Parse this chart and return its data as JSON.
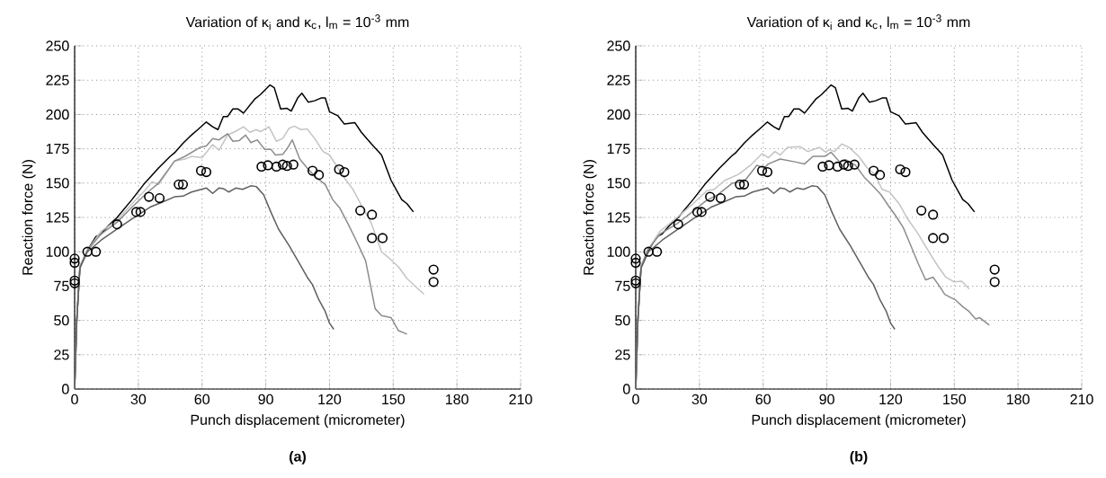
{
  "chart_data": [
    {
      "type": "line",
      "title": "Variation of κ$_{i}$ and κ$_{c}$, l$_{m}$ = 10$^{-3}$ mm",
      "xlabel": "Punch displacement (micrometer)",
      "ylabel": "Reaction force (N)",
      "annotations": [
        "(a)"
      ],
      "xlim": [
        0,
        210
      ],
      "xticks": [
        0,
        30,
        60,
        90,
        120,
        150,
        180,
        210
      ],
      "ylim": [
        0,
        250
      ],
      "yticks": [
        0,
        25,
        50,
        75,
        100,
        125,
        150,
        175,
        200,
        225,
        250
      ],
      "grid": true,
      "series": [
        {
          "type": "line",
          "color": "#000000",
          "marker": "none",
          "x": [
            0,
            1,
            2.5,
            6,
            10,
            12.5,
            15.5,
            20,
            27,
            32.5,
            39.5,
            45,
            47,
            51,
            55,
            58,
            62,
            65,
            67.5,
            70,
            72,
            74.5,
            77,
            79.5,
            85,
            87.5,
            92,
            94,
            97,
            100,
            102,
            105,
            107,
            110,
            113,
            116,
            118,
            120,
            124,
            127,
            132,
            135,
            139.5,
            144.5,
            149,
            154,
            156.5,
            159.5
          ],
          "values": [
            0,
            50,
            89,
            101,
            111,
            113,
            118.5,
            125,
            138,
            149,
            161,
            169.5,
            172,
            179,
            185,
            189,
            194.5,
            191,
            189,
            198.5,
            198.5,
            204,
            204,
            201,
            211.5,
            214.5,
            221.5,
            219.5,
            204,
            204.5,
            202.5,
            212,
            215.5,
            209,
            210,
            212,
            212,
            202,
            199,
            193,
            194,
            187,
            179,
            170.5,
            152,
            138,
            135,
            129
          ]
        },
        {
          "type": "line",
          "color": "#c4c4c4",
          "marker": "none",
          "x": [
            0,
            1,
            2.5,
            6,
            12.5,
            20,
            27,
            33,
            36.5,
            39.5,
            47,
            52,
            55,
            60,
            65,
            68,
            72,
            75.5,
            79.5,
            82.5,
            85.5,
            87.5,
            91.5,
            95,
            98,
            101,
            103.5,
            106.5,
            109.5,
            113,
            117,
            120,
            124,
            127,
            131,
            135.5,
            139.5,
            142.5,
            144.5,
            148,
            152.5,
            156.5,
            161,
            164.5
          ],
          "values": [
            0,
            50,
            89,
            101,
            115,
            123,
            135,
            144.5,
            151,
            149,
            166,
            167.5,
            169.5,
            168.5,
            178,
            174,
            185,
            187.5,
            191,
            187,
            189,
            187.5,
            191,
            180.5,
            182.5,
            190,
            191.5,
            189,
            189.5,
            182.5,
            173,
            170.5,
            161,
            154,
            145.5,
            132.5,
            121.5,
            108.5,
            100,
            95.5,
            89,
            80.5,
            74,
            69
          ]
        },
        {
          "type": "line",
          "color": "#8c8c8c",
          "marker": "none",
          "x": [
            0,
            1,
            2.5,
            6,
            12.5,
            20,
            27,
            34.5,
            39.5,
            47,
            52,
            59,
            62,
            65,
            68,
            72,
            74.5,
            77.5,
            80.5,
            83,
            86,
            89.5,
            92.5,
            94.5,
            98,
            100,
            102.5,
            106,
            109.5,
            113.5,
            118,
            121.5,
            125,
            129,
            132.5,
            137,
            141.5,
            144.5,
            149,
            152.5,
            156.5
          ],
          "values": [
            0,
            50,
            89,
            101,
            113,
            121.5,
            132.5,
            143.5,
            150,
            166,
            169.5,
            176,
            177,
            182.5,
            181.5,
            186,
            180.5,
            181,
            185,
            179.5,
            181.5,
            174.5,
            174.5,
            170.5,
            171,
            175,
            181.5,
            167.5,
            161,
            154.5,
            149,
            138,
            131.5,
            119.5,
            108.5,
            93.5,
            58.5,
            53.5,
            52,
            42.5,
            40
          ]
        },
        {
          "type": "line",
          "color": "#5f5f5f",
          "marker": "none",
          "x": [
            0,
            1,
            2.5,
            6,
            12.5,
            20,
            27,
            35.5,
            41,
            47,
            51,
            55,
            62,
            65,
            68,
            70,
            72.5,
            76,
            79,
            83,
            85.5,
            89,
            92.5,
            96,
            101,
            106,
            109.5,
            112,
            115,
            118,
            120,
            122
          ],
          "values": [
            0,
            50,
            88,
            100,
            108.5,
            116.5,
            124,
            132.5,
            136,
            140,
            140.5,
            143.5,
            146.5,
            142.5,
            146.5,
            146,
            143.5,
            146.5,
            145.5,
            148,
            147.5,
            141.5,
            128.5,
            116.5,
            104.5,
            91,
            81.5,
            76,
            65,
            56.5,
            48,
            43.5
          ]
        },
        {
          "type": "scatter",
          "color": "#000000",
          "marker": "circle",
          "x": [
            0,
            0,
            0,
            0,
            6,
            10,
            20,
            29,
            31,
            35,
            40,
            49,
            51,
            59.5,
            62,
            88,
            91,
            95,
            98,
            100,
            103,
            112,
            115,
            124.5,
            127,
            134.5,
            140,
            140,
            145,
            169,
            169
          ],
          "values": [
            95,
            92,
            79,
            77,
            100,
            100,
            120,
            129,
            129,
            140,
            139,
            149,
            149,
            159,
            158,
            162,
            163,
            162,
            163.5,
            162.5,
            163.5,
            159,
            156,
            160,
            158,
            130,
            127,
            110,
            110,
            87,
            78
          ]
        }
      ]
    },
    {
      "type": "line",
      "title": "Variation of κ$_{i}$ and κ$_{c}$, l$_{m}$ = 10$^{-3}$ mm",
      "xlabel": "Punch displacement (micrometer)",
      "ylabel": "Reaction force (N)",
      "annotations": [
        "(b)"
      ],
      "xlim": [
        0,
        210
      ],
      "xticks": [
        0,
        30,
        60,
        90,
        120,
        150,
        180,
        210
      ],
      "ylim": [
        0,
        250
      ],
      "yticks": [
        0,
        25,
        50,
        75,
        100,
        125,
        150,
        175,
        200,
        225,
        250
      ],
      "grid": true,
      "series": [
        {
          "type": "line",
          "color": "#000000",
          "marker": "none",
          "x": [
            0,
            1,
            2.5,
            6,
            10,
            12.5,
            15.5,
            20,
            27,
            32.5,
            39.5,
            45,
            47,
            51,
            55,
            58,
            62,
            65,
            67.5,
            70,
            72,
            74.5,
            77,
            79.5,
            85,
            87.5,
            92,
            94,
            97,
            100,
            102,
            105,
            107,
            110,
            113,
            116,
            118,
            120,
            124,
            127,
            132,
            135,
            139.5,
            144.5,
            149,
            154,
            156.5,
            159.5
          ],
          "values": [
            0,
            50,
            89,
            101,
            111,
            113,
            118.5,
            125,
            138,
            149,
            161,
            169.5,
            172,
            179,
            185,
            189,
            194.5,
            191,
            189,
            198.5,
            198.5,
            204,
            204,
            201,
            211.5,
            214.5,
            221.5,
            219.5,
            204,
            204.5,
            202.5,
            212,
            215.5,
            209,
            210,
            212,
            212,
            202,
            199,
            193,
            194,
            187,
            179,
            170.5,
            152,
            138,
            135,
            129
          ]
        },
        {
          "type": "line",
          "color": "#c4c4c4",
          "marker": "none",
          "x": [
            0,
            1,
            2.5,
            5.5,
            11.5,
            19.5,
            27,
            33.5,
            37,
            42,
            48.5,
            54,
            59.5,
            62.5,
            65.5,
            68,
            71.5,
            77.5,
            81,
            86.5,
            89.5,
            91,
            93.5,
            97,
            100.5,
            105,
            109,
            112.5,
            116,
            119.5,
            124,
            128,
            133,
            138,
            142.5,
            146,
            150,
            153.5,
            157
          ],
          "values": [
            0,
            50,
            89,
            101,
            115,
            125,
            135,
            144.5,
            145.5,
            152,
            156.5,
            163,
            171.5,
            168.5,
            173,
            170.5,
            176,
            176.5,
            173,
            176,
            172.5,
            174.5,
            173,
            178.5,
            176,
            169.5,
            161,
            156.5,
            145.5,
            143.5,
            135,
            124,
            113,
            100,
            89,
            81.5,
            78,
            78.5,
            73
          ]
        },
        {
          "type": "line",
          "color": "#8c8c8c",
          "marker": "none",
          "x": [
            0,
            1,
            2.5,
            5.5,
            11.5,
            19.5,
            27,
            33,
            38.5,
            45.5,
            51,
            57,
            60.5,
            62.5,
            68,
            75,
            79.5,
            83.5,
            89,
            92,
            96,
            99,
            103.5,
            107.5,
            111,
            115.5,
            119,
            122.5,
            126,
            129.5,
            133,
            136.5,
            140,
            143,
            145.5,
            148.5,
            150.5,
            154,
            157,
            160,
            162,
            166.5
          ],
          "values": [
            0,
            50,
            89,
            101,
            113,
            120.5,
            129.5,
            137,
            141.5,
            150,
            151,
            163,
            161,
            164,
            167.5,
            165.5,
            164,
            169.5,
            169.5,
            172.5,
            165.5,
            167,
            163,
            154.5,
            149,
            141.5,
            133.5,
            126,
            117.5,
            104.5,
            91.5,
            79.5,
            81.5,
            75,
            69,
            66.5,
            65,
            60,
            56.5,
            51,
            52,
            46.5
          ]
        },
        {
          "type": "line",
          "color": "#5f5f5f",
          "marker": "none",
          "x": [
            0,
            1,
            2.5,
            6,
            12.5,
            20,
            27,
            35.5,
            41,
            47,
            51,
            55,
            62,
            65,
            68,
            70,
            72.5,
            76,
            79,
            83,
            85.5,
            89,
            92.5,
            96,
            101,
            106,
            109.5,
            112,
            115,
            118,
            120,
            122
          ],
          "values": [
            0,
            50,
            88,
            100,
            108.5,
            116.5,
            124,
            132.5,
            136,
            140,
            140.5,
            143.5,
            146.5,
            142.5,
            146.5,
            146,
            143.5,
            146.5,
            145.5,
            148,
            147.5,
            141.5,
            128.5,
            116.5,
            104.5,
            91,
            81.5,
            76,
            65,
            56.5,
            48,
            43.5
          ]
        },
        {
          "type": "scatter",
          "color": "#000000",
          "marker": "circle",
          "x": [
            0,
            0,
            0,
            0,
            6,
            10,
            20,
            29,
            31,
            35,
            40,
            49,
            51,
            59.5,
            62,
            88,
            91,
            95,
            98,
            100,
            103,
            112,
            115,
            124.5,
            127,
            134.5,
            140,
            140,
            145,
            169,
            169
          ],
          "values": [
            95,
            92,
            79,
            77,
            100,
            100,
            120,
            129,
            129,
            140,
            139,
            149,
            149,
            159,
            158,
            162,
            163,
            162,
            163.5,
            162.5,
            163.5,
            159,
            156,
            160,
            158,
            130,
            127,
            110,
            110,
            87,
            78
          ]
        }
      ]
    }
  ]
}
